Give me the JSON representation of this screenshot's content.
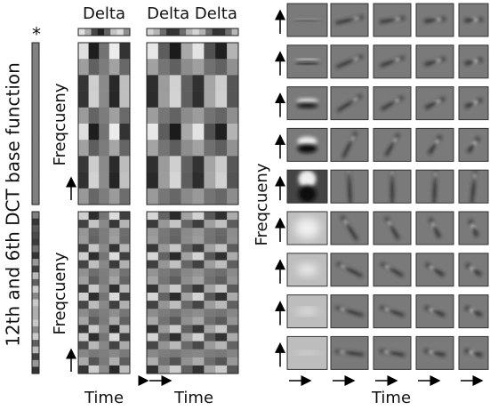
{
  "header": {
    "star": "*",
    "delta": "Delta",
    "delta_delta": "Delta Delta"
  },
  "side_label": "12th and 6th DCT base function",
  "frequency_labels": [
    "Freqcueny",
    "Freqcueny",
    "Freqcueny"
  ],
  "time_labels": [
    "Time",
    "Time",
    "Time"
  ]
}
